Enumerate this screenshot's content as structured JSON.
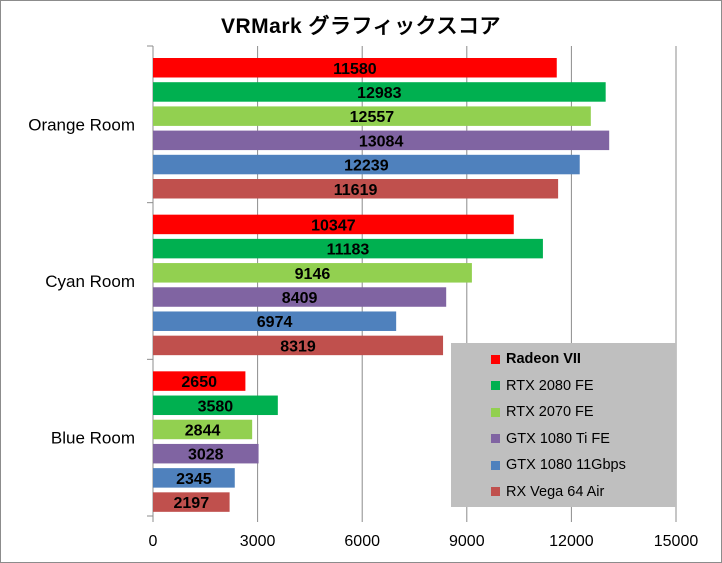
{
  "chart_data": {
    "type": "bar",
    "orientation": "horizontal",
    "title": "VRMark グラフィックスコア",
    "categories": [
      "Orange Room",
      "Cyan Room",
      "Blue Room"
    ],
    "series": [
      {
        "name": "Radeon VII",
        "color": "#ff0000",
        "values": [
          11580,
          10347,
          2650
        ]
      },
      {
        "name": "RTX 2080 FE",
        "color": "#00b050",
        "values": [
          12983,
          11183,
          3580
        ]
      },
      {
        "name": "RTX 2070 FE",
        "color": "#92d050",
        "values": [
          12557,
          9146,
          2844
        ]
      },
      {
        "name": "GTX 1080 Ti FE",
        "color": "#8064a2",
        "values": [
          13084,
          8409,
          3028
        ]
      },
      {
        "name": "GTX 1080 11Gbps",
        "color": "#4f81bd",
        "values": [
          12239,
          6974,
          2345
        ]
      },
      {
        "name": "RX Vega 64 Air",
        "color": "#c0504d",
        "values": [
          11619,
          8319,
          2197
        ]
      }
    ],
    "xlim": [
      0,
      15000
    ],
    "xticks": [
      "0",
      "3000",
      "6000",
      "9000",
      "12000",
      "15000"
    ],
    "xlabel": "",
    "ylabel": "",
    "grid": true,
    "legend_position": "bottom-right",
    "legend_background": "#bfbfbf",
    "legend_bold": [
      "Radeon VII"
    ]
  }
}
